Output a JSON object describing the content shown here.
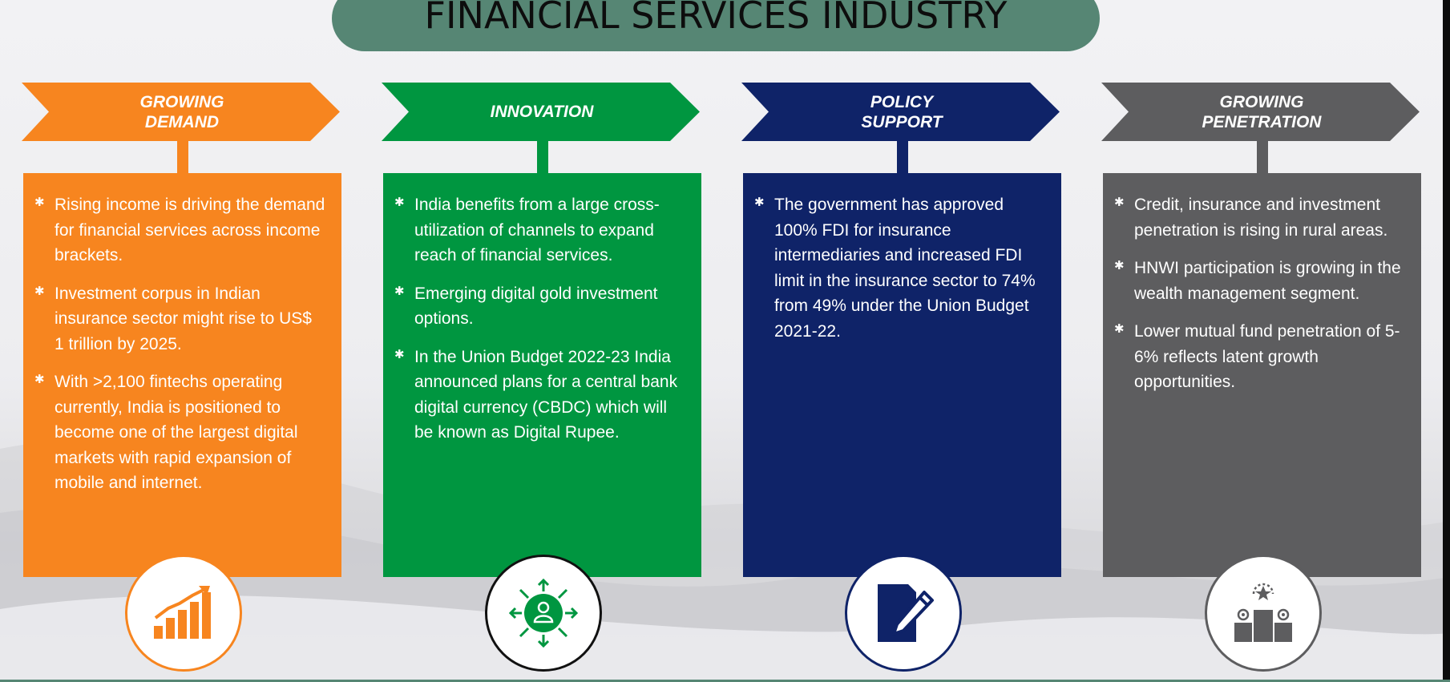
{
  "title": "FINANCIAL SERVICES INDUSTRY",
  "colors": {
    "title_bar": "#568674",
    "orange": "#f7851f",
    "green": "#009640",
    "navy": "#0f2368",
    "gray": "#5d5d5f"
  },
  "columns": [
    {
      "heading": "GROWING\nDEMAND",
      "color": "#f7851f",
      "icon": "bar-chart-growth-icon",
      "bullets": [
        "Rising income is driving the demand for financial services across income brackets.",
        "Investment corpus in Indian insurance sector might rise to US$ 1 trillion by 2025.",
        "With >2,100 fintechs operating currently, India is positioned to become one of the largest digital markets with rapid expansion of mobile and internet."
      ]
    },
    {
      "heading": "INNOVATION",
      "color": "#009640",
      "icon": "person-network-icon",
      "bullets": [
        "India benefits from a large cross-utilization of channels to expand reach of financial services.",
        "Emerging digital gold investment options.",
        "In the Union Budget 2022-23 India announced plans for a central bank digital currency (CBDC) which will be known as Digital Rupee."
      ]
    },
    {
      "heading": "POLICY\nSUPPORT",
      "color": "#0f2368",
      "icon": "document-pen-icon",
      "bullets": [
        "The government has approved 100% FDI for insurance intermediaries and increased FDI limit in the insurance sector to 74% from 49% under the Union Budget 2021-22."
      ]
    },
    {
      "heading": "GROWING\nPENETRATION",
      "color": "#5d5d5f",
      "icon": "podium-award-icon",
      "bullets": [
        "Credit, insurance and investment penetration is rising in rural areas.",
        "HNWI participation is growing in the wealth management segment.",
        "Lower mutual fund penetration of 5-6% reflects latent growth opportunities."
      ]
    }
  ]
}
